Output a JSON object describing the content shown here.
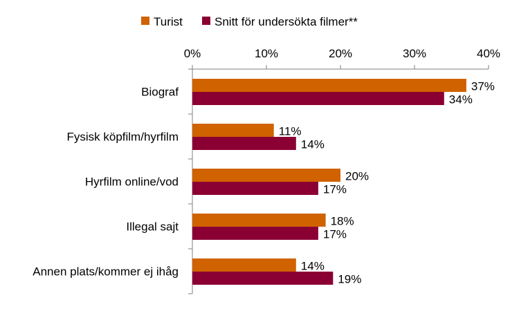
{
  "chart_data": {
    "type": "bar",
    "orientation": "horizontal",
    "categories": [
      "Biograf",
      "Fysisk köpfilm/hyrfilm",
      "Hyrfilm online/vod",
      "Illegal sajt",
      "Annen plats/kommer ej ihåg"
    ],
    "series": [
      {
        "name": "Turist",
        "values": [
          37,
          11,
          20,
          18,
          14
        ],
        "color": "#D06200"
      },
      {
        "name": "Snitt för undersökta filmer**",
        "values": [
          34,
          14,
          17,
          17,
          19
        ],
        "color": "#8B0033"
      }
    ],
    "value_labels": [
      [
        "37%",
        "11%",
        "20%",
        "18%",
        "14%"
      ],
      [
        "34%",
        "14%",
        "17%",
        "17%",
        "19%"
      ]
    ],
    "xlim": [
      0,
      40
    ],
    "xticks": [
      0,
      10,
      20,
      30,
      40
    ],
    "xtick_labels": [
      "0%",
      "10%",
      "20%",
      "30%",
      "40%"
    ],
    "axis_position": "top",
    "grid": false,
    "legend": "top"
  }
}
